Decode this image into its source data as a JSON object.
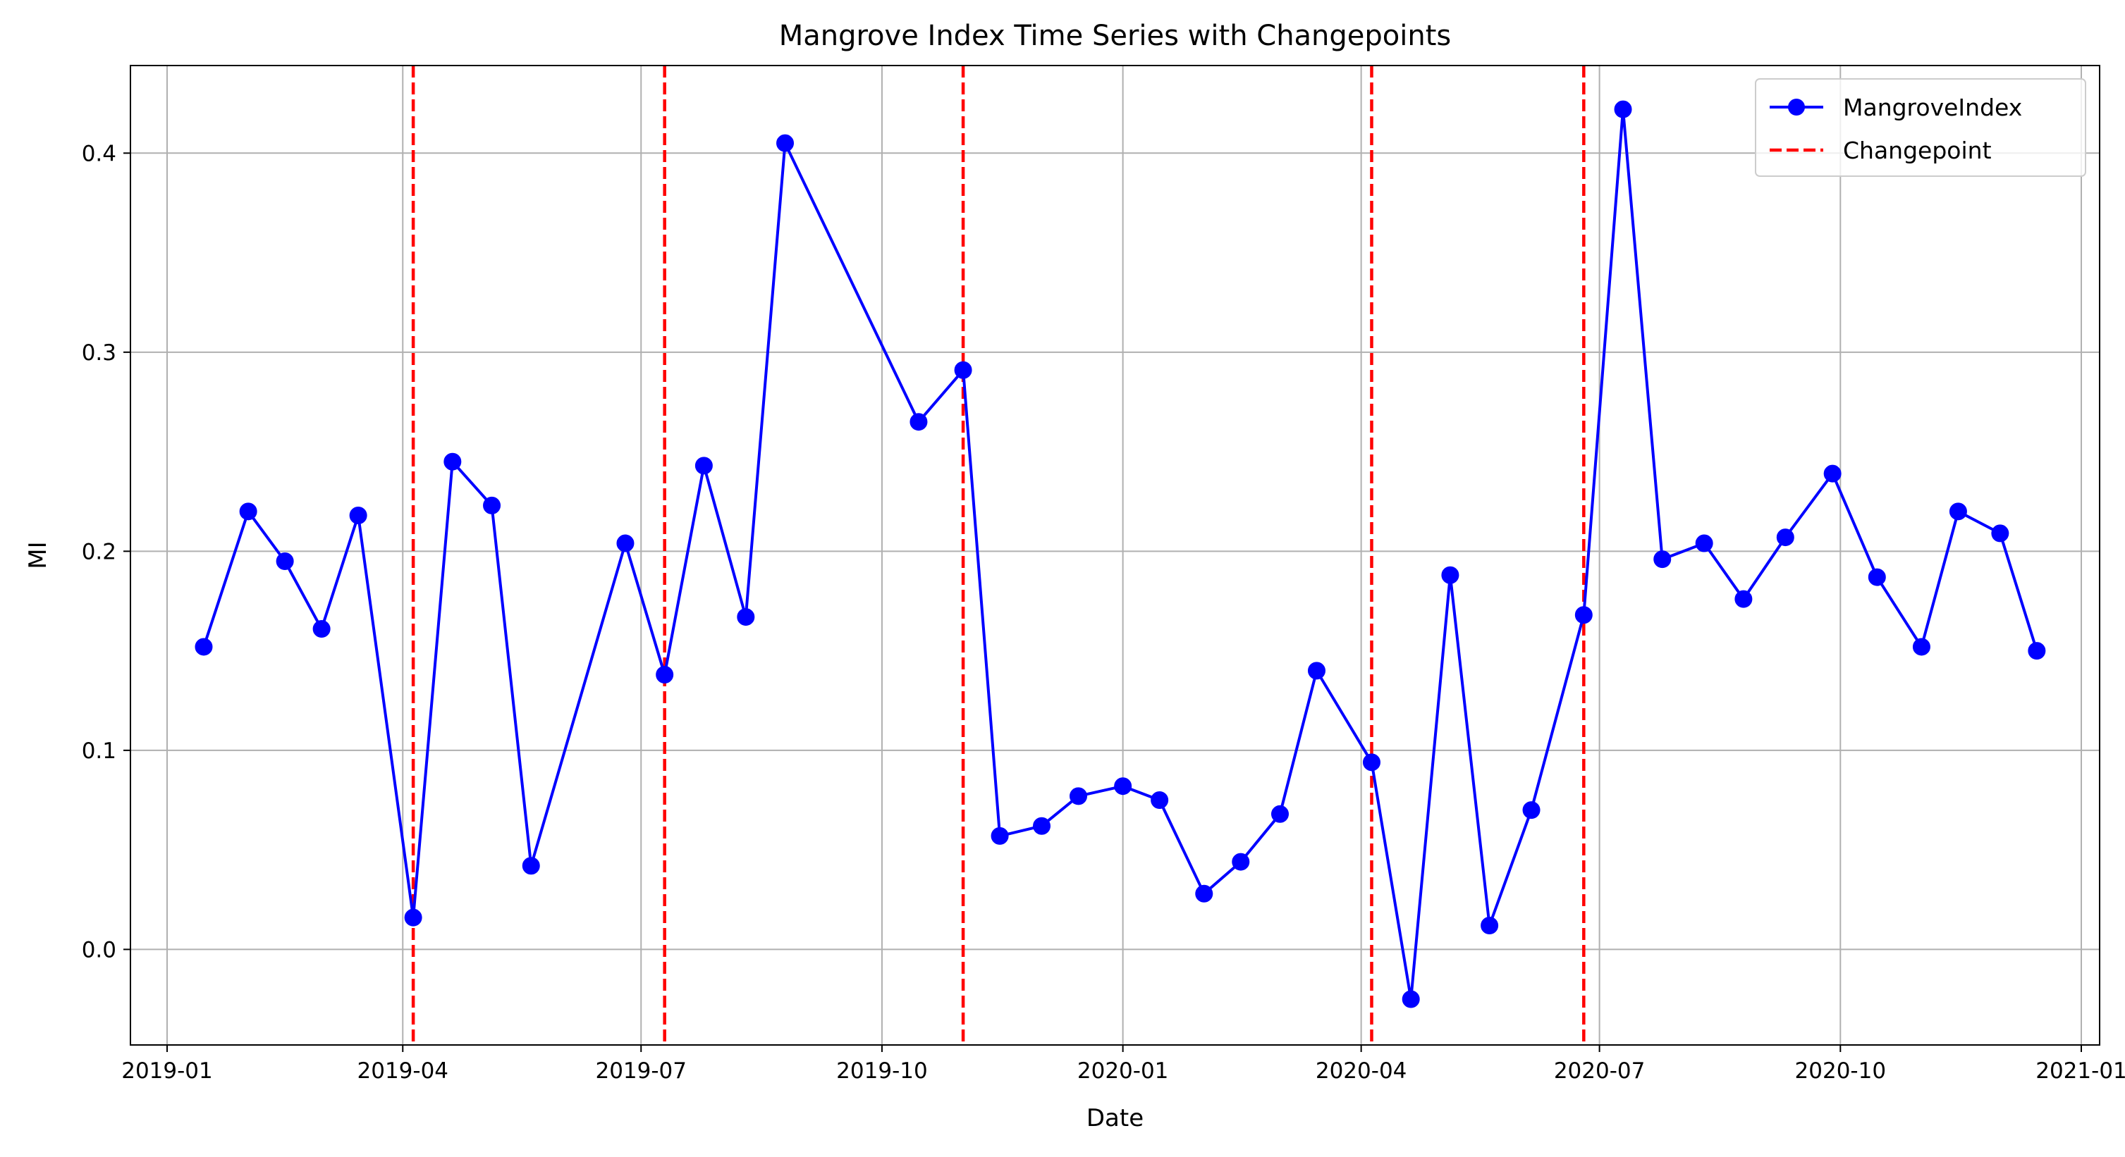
{
  "chart_data": {
    "type": "line",
    "title": "Mangrove Index Time Series with Changepoints",
    "xlabel": "Date",
    "ylabel": "MI",
    "grid": true,
    "legend_position": "top-right",
    "xlim": [
      "2018-12-18",
      "2021-01-08"
    ],
    "ylim": [
      -0.048,
      0.444
    ],
    "x_ticks": [
      {
        "date": "2019-01-01",
        "label": "2019-01"
      },
      {
        "date": "2019-04-01",
        "label": "2019-04"
      },
      {
        "date": "2019-07-01",
        "label": "2019-07"
      },
      {
        "date": "2019-10-01",
        "label": "2019-10"
      },
      {
        "date": "2020-01-01",
        "label": "2020-01"
      },
      {
        "date": "2020-04-01",
        "label": "2020-04"
      },
      {
        "date": "2020-07-01",
        "label": "2020-07"
      },
      {
        "date": "2020-10-01",
        "label": "2020-10"
      },
      {
        "date": "2021-01-01",
        "label": "2021-01"
      }
    ],
    "y_ticks": [
      {
        "value": 0.0,
        "label": "0.0"
      },
      {
        "value": 0.1,
        "label": "0.1"
      },
      {
        "value": 0.2,
        "label": "0.2"
      },
      {
        "value": 0.3,
        "label": "0.3"
      },
      {
        "value": 0.4,
        "label": "0.4"
      }
    ],
    "series": [
      {
        "name": "MangroveIndex",
        "color": "#0000ff",
        "marker": "circle",
        "x": [
          "2019-01-15",
          "2019-02-01",
          "2019-02-15",
          "2019-03-01",
          "2019-03-15",
          "2019-04-05",
          "2019-04-20",
          "2019-05-05",
          "2019-05-20",
          "2019-06-25",
          "2019-07-10",
          "2019-07-25",
          "2019-08-10",
          "2019-08-25",
          "2019-10-15",
          "2019-11-01",
          "2019-11-15",
          "2019-12-01",
          "2019-12-15",
          "2020-01-01",
          "2020-01-15",
          "2020-02-01",
          "2020-02-15",
          "2020-03-01",
          "2020-03-15",
          "2020-04-05",
          "2020-04-20",
          "2020-05-05",
          "2020-05-20",
          "2020-06-05",
          "2020-06-25",
          "2020-07-10",
          "2020-07-25",
          "2020-08-10",
          "2020-08-25",
          "2020-09-10",
          "2020-09-28",
          "2020-10-15",
          "2020-11-01",
          "2020-11-15",
          "2020-12-01",
          "2020-12-15"
        ],
        "y": [
          0.152,
          0.22,
          0.195,
          0.161,
          0.218,
          0.016,
          0.245,
          0.223,
          0.042,
          0.204,
          0.138,
          0.243,
          0.167,
          0.405,
          0.265,
          0.291,
          0.057,
          0.062,
          0.077,
          0.082,
          0.075,
          0.028,
          0.044,
          0.068,
          0.14,
          0.094,
          -0.025,
          0.188,
          0.012,
          0.07,
          0.168,
          0.422,
          0.196,
          0.204,
          0.176,
          0.207,
          0.239,
          0.187,
          0.152,
          0.22,
          0.209,
          0.15
        ]
      }
    ],
    "changepoints": {
      "name": "Changepoint",
      "color": "#ff0000",
      "style": "dashed",
      "dates": [
        "2019-04-05",
        "2019-07-10",
        "2019-11-01",
        "2020-04-05",
        "2020-06-25"
      ]
    }
  }
}
